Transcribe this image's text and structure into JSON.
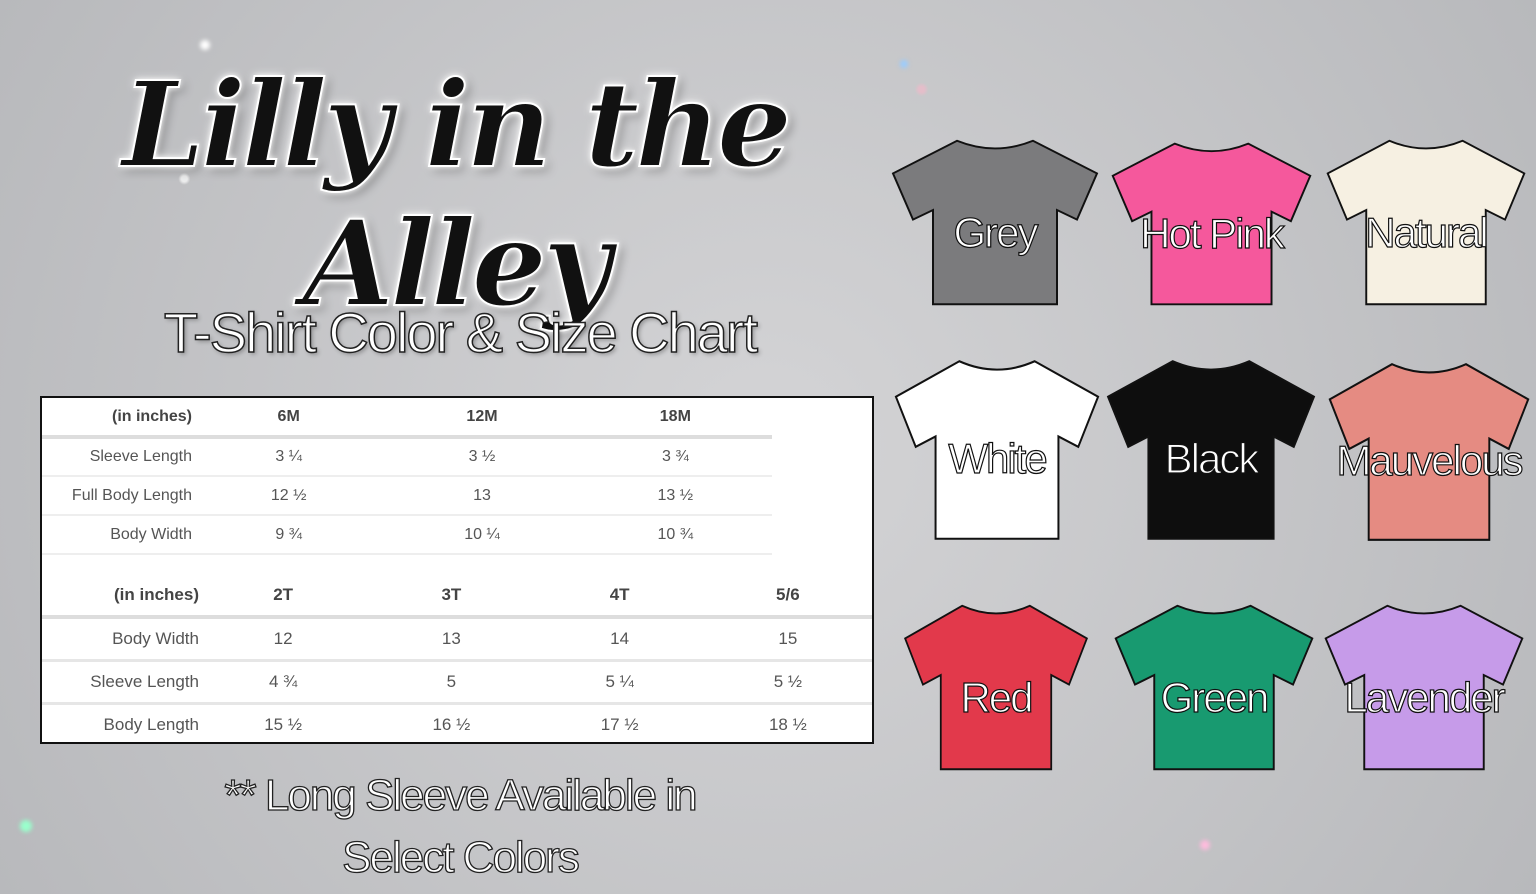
{
  "brand": "Lilly in the Alley",
  "subtitle": "T-Shirt Color & Size Chart",
  "size_table_infant": {
    "headers": [
      "(in inches)",
      "6M",
      "12M",
      "18M"
    ],
    "rows": [
      [
        "Sleeve Length",
        "3 ¼",
        "3 ½",
        "3 ¾"
      ],
      [
        "Full Body Length",
        "12 ½",
        "13",
        "13 ½"
      ],
      [
        "Body Width",
        "9 ¾",
        "10 ¼",
        "10 ¾"
      ]
    ]
  },
  "size_table_toddler": {
    "headers": [
      "(in inches)",
      "2T",
      "3T",
      "4T",
      "5/6"
    ],
    "rows": [
      [
        "Body Width",
        "12",
        "13",
        "14",
        "15"
      ],
      [
        "Sleeve Length",
        "4 ¾",
        "5",
        "5 ¼",
        "5 ½"
      ],
      [
        "Body Length",
        "15 ½",
        "16 ½",
        "17 ½",
        "18 ½"
      ]
    ]
  },
  "note_line1": "** Long Sleeve Available in",
  "note_line2": "Select Colors",
  "shirts": [
    {
      "name": "Grey",
      "color": "#7b7b7d"
    },
    {
      "name": "Hot Pink",
      "color": "#f5589c"
    },
    {
      "name": "Natural",
      "color": "#f6f0e2"
    },
    {
      "name": "White",
      "color": "#ffffff"
    },
    {
      "name": "Black",
      "color": "#0e0e0e"
    },
    {
      "name": "Mauvelous",
      "color": "#e58b82"
    },
    {
      "name": "Red",
      "color": "#e2394b"
    },
    {
      "name": "Green",
      "color": "#189a70"
    },
    {
      "name": "Lavender",
      "color": "#c69be9"
    }
  ]
}
